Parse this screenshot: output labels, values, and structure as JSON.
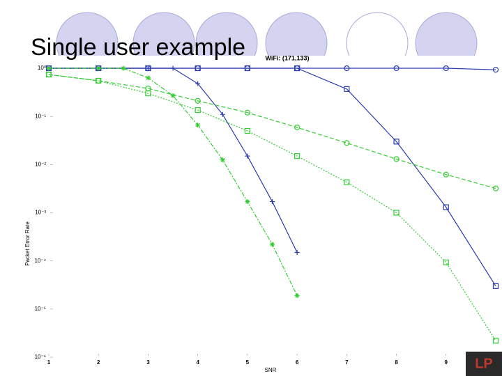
{
  "slide_title": "Single user example",
  "chart_data": {
    "type": "line",
    "title": "WiFi: (171,133)",
    "x_label": "SNR",
    "y_label": "Packet Error Rate",
    "log_y": true,
    "xlim": [
      1,
      10
    ],
    "xticks": [
      1,
      2,
      3,
      4,
      5,
      6,
      7,
      8,
      9
    ],
    "ylim": [
      1e-06,
      1
    ],
    "yticks": [
      {
        "value": 1,
        "label": "10⁰"
      },
      {
        "value": 0.1,
        "label": "10⁻¹"
      },
      {
        "value": 0.01,
        "label": "10⁻²"
      },
      {
        "value": 0.001,
        "label": "10⁻³"
      },
      {
        "value": 0.0001,
        "label": "10⁻⁴"
      },
      {
        "value": 1e-05,
        "label": "10⁻⁵"
      },
      {
        "value": 1e-06,
        "label": "10⁻⁶"
      }
    ],
    "series": [
      {
        "color": "#2a3bb0",
        "linestyle": "solid",
        "marker": "circle",
        "x": [
          1,
          2,
          3,
          4,
          5,
          6,
          7,
          8,
          9,
          10
        ],
        "values": [
          1,
          1,
          1,
          1,
          1,
          1,
          1,
          1,
          1,
          0.93
        ]
      },
      {
        "color": "#2a3bb0",
        "linestyle": "solid",
        "marker": "square",
        "x": [
          1,
          2,
          3,
          4,
          5,
          6,
          7,
          8,
          9,
          10
        ],
        "values": [
          1,
          1,
          1,
          1,
          1,
          1,
          0.37,
          0.03,
          0.0013,
          3e-05
        ]
      },
      {
        "color": "#2a3bb0",
        "linestyle": "solid",
        "marker": "plus",
        "x": [
          1,
          2,
          3,
          3.5,
          4,
          4.5,
          5,
          5.5,
          6
        ],
        "values": [
          1,
          1,
          1,
          1,
          0.48,
          0.11,
          0.015,
          0.0017,
          0.00015
        ]
      },
      {
        "color": "#33cc33",
        "linestyle": "dashdot",
        "marker": "star",
        "x": [
          1,
          2,
          2.5,
          3,
          3.5,
          4,
          4.5,
          5,
          5.5,
          6
        ],
        "values": [
          1,
          1,
          1,
          0.63,
          0.27,
          0.066,
          0.0125,
          0.0017,
          0.00022,
          1.9e-05
        ]
      },
      {
        "color": "#33cc33",
        "linestyle": "dashed",
        "marker": "circle",
        "x": [
          1,
          2,
          3,
          4,
          5,
          6,
          7,
          8,
          9,
          10
        ],
        "values": [
          0.74,
          0.55,
          0.38,
          0.21,
          0.12,
          0.059,
          0.028,
          0.013,
          0.0062,
          0.0032
        ]
      },
      {
        "color": "#33cc33",
        "linestyle": "dotted",
        "marker": "square",
        "x": [
          1,
          2,
          3,
          4,
          5,
          6,
          7,
          8,
          9,
          10
        ],
        "values": [
          0.74,
          0.55,
          0.3,
          0.135,
          0.05,
          0.015,
          0.0043,
          0.001,
          9.3e-05,
          2.2e-06
        ]
      }
    ]
  }
}
